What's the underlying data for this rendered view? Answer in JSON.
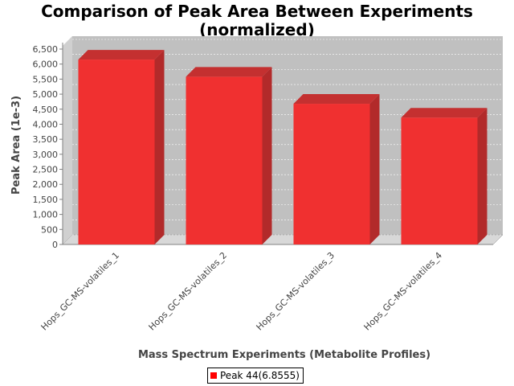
{
  "chart_data": {
    "type": "bar",
    "title_line1": "Comparison of Peak Area Between Experiments",
    "title_line2": "(normalized)",
    "xlabel": "Mass Spectrum Experiments (Metabolite Profiles)",
    "ylabel": "Peak Area (1e-3)",
    "categories": [
      "Hops_GC-MS-volatiles_1",
      "Hops_GC-MS-volatiles_2",
      "Hops_GC-MS-volatiles_3",
      "Hops_GC-MS-volatiles_4"
    ],
    "series": [
      {
        "name": "Peak 44(6.8555)",
        "values": [
          6150,
          5580,
          4680,
          4220
        ],
        "color": "#ff0000"
      }
    ],
    "ylim": [
      0,
      6500
    ],
    "yticks": [
      "0",
      "500",
      "1,000",
      "1,500",
      "2,000",
      "2,500",
      "3,000",
      "3,500",
      "4,000",
      "4,500",
      "5,000",
      "5,500",
      "6,000",
      "6,500"
    ],
    "ytick_values": [
      0,
      500,
      1000,
      1500,
      2000,
      2500,
      3000,
      3500,
      4000,
      4500,
      5000,
      5500,
      6000,
      6500
    ],
    "grid": true,
    "legend_position": "bottom-center",
    "plot_background": "#c0c0c0"
  }
}
